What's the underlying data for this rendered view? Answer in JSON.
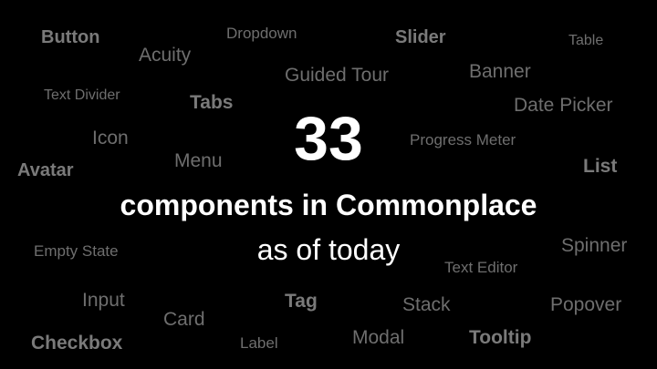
{
  "headline": {
    "count": "33",
    "line": "components in Commonplace",
    "subline": "as of today"
  },
  "words": {
    "button": "Button",
    "acuity": "Acuity",
    "dropdown": "Dropdown",
    "slider": "Slider",
    "table": "Table",
    "guided_tour": "Guided Tour",
    "banner": "Banner",
    "text_divider": "Text Divider",
    "tabs": "Tabs",
    "date_picker": "Date Picker",
    "icon": "Icon",
    "progress_meter": "Progress Meter",
    "menu": "Menu",
    "avatar": "Avatar",
    "list": "List",
    "empty_state": "Empty State",
    "spinner": "Spinner",
    "text_editor": "Text Editor",
    "input": "Input",
    "tag": "Tag",
    "stack": "Stack",
    "popover": "Popover",
    "card": "Card",
    "checkbox": "Checkbox",
    "label": "Label",
    "modal": "Modal",
    "tooltip": "Tooltip"
  },
  "colors": {
    "background": "#000000",
    "headline": "#ffffff",
    "word_cloud": "#6e6e6e"
  }
}
